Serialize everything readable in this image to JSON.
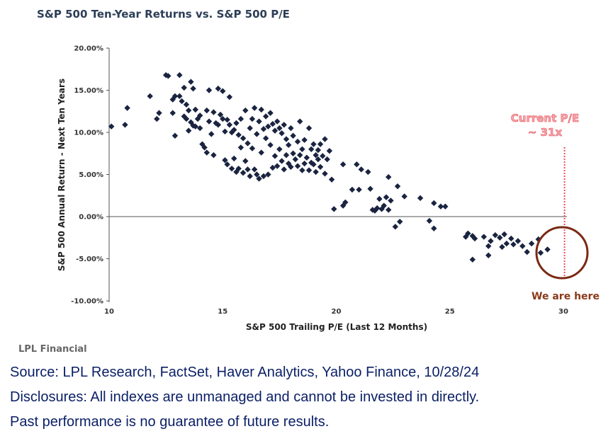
{
  "chart_data": {
    "type": "scatter",
    "title": "S&P 500 Ten-Year Returns vs. S&P 500 P/E",
    "xlabel": "S&P 500 Trailing P/E (Last 12 Months)",
    "ylabel": "S&P 500 Annual Return - Next Ten Years",
    "xlim": [
      10,
      30
    ],
    "ylim": [
      -10,
      20
    ],
    "x_ticks": [
      "10",
      "15",
      "20",
      "25",
      "30"
    ],
    "y_ticks": [
      "20.00%",
      "15.00%",
      "10.00%",
      "5.00%",
      "0.00%",
      "-5.00%",
      "-10.00%"
    ],
    "marker": "diamond",
    "marker_color": "#1a2440",
    "annotation_color": "#e8505b",
    "circle_color": "#7a2a14",
    "annotations": {
      "current_pe_line1": "Current P/E",
      "current_pe_line2": "~ 31x",
      "we_are_here": "We are here",
      "current_pe_x": 30.05
    },
    "points": [
      [
        10.1,
        10.7
      ],
      [
        10.7,
        10.9
      ],
      [
        10.8,
        12.9
      ],
      [
        11.8,
        14.3
      ],
      [
        12.1,
        11.6
      ],
      [
        12.2,
        12.3
      ],
      [
        12.5,
        16.8
      ],
      [
        12.6,
        16.7
      ],
      [
        12.8,
        13.9
      ],
      [
        12.8,
        12.3
      ],
      [
        12.9,
        14.3
      ],
      [
        12.9,
        9.6
      ],
      [
        13.1,
        16.8
      ],
      [
        13.1,
        14.3
      ],
      [
        13.2,
        13.7
      ],
      [
        13.3,
        15.3
      ],
      [
        13.3,
        11.9
      ],
      [
        13.4,
        13.3
      ],
      [
        13.4,
        11.6
      ],
      [
        13.5,
        12.6
      ],
      [
        13.5,
        10.2
      ],
      [
        13.6,
        16.0
      ],
      [
        13.6,
        11.2
      ],
      [
        13.7,
        15.2
      ],
      [
        13.7,
        10.8
      ],
      [
        13.8,
        12.7
      ],
      [
        13.8,
        10.7
      ],
      [
        13.9,
        11.6
      ],
      [
        14.0,
        10.5
      ],
      [
        14.0,
        12.0
      ],
      [
        14.1,
        8.6
      ],
      [
        14.2,
        8.2
      ],
      [
        14.3,
        12.6
      ],
      [
        14.3,
        7.6
      ],
      [
        14.4,
        15.0
      ],
      [
        14.4,
        11.3
      ],
      [
        14.5,
        9.8
      ],
      [
        14.6,
        12.4
      ],
      [
        14.6,
        7.3
      ],
      [
        14.7,
        11.1
      ],
      [
        14.8,
        15.2
      ],
      [
        14.8,
        10.9
      ],
      [
        14.9,
        12.1
      ],
      [
        15.0,
        14.9
      ],
      [
        15.0,
        11.6
      ],
      [
        15.1,
        10.1
      ],
      [
        15.1,
        6.7
      ],
      [
        15.2,
        11.5
      ],
      [
        15.2,
        6.2
      ],
      [
        15.3,
        14.2
      ],
      [
        15.3,
        10.9
      ],
      [
        15.4,
        10.0
      ],
      [
        15.4,
        5.7
      ],
      [
        15.5,
        10.3
      ],
      [
        15.5,
        6.9
      ],
      [
        15.6,
        11.1
      ],
      [
        15.6,
        5.3
      ],
      [
        15.7,
        9.7
      ],
      [
        15.7,
        5.7
      ],
      [
        15.8,
        11.6
      ],
      [
        15.8,
        8.2
      ],
      [
        15.9,
        9.3
      ],
      [
        15.9,
        5.2
      ],
      [
        16.0,
        12.6
      ],
      [
        16.0,
        6.6
      ],
      [
        16.1,
        8.7
      ],
      [
        16.1,
        5.6
      ],
      [
        16.2,
        10.5
      ],
      [
        16.2,
        4.8
      ],
      [
        16.3,
        11.6
      ],
      [
        16.3,
        8.1
      ],
      [
        16.4,
        12.9
      ],
      [
        16.4,
        5.6
      ],
      [
        16.5,
        9.8
      ],
      [
        16.5,
        5.0
      ],
      [
        16.6,
        11.3
      ],
      [
        16.6,
        4.5
      ],
      [
        16.7,
        12.7
      ],
      [
        16.7,
        7.6
      ],
      [
        16.8,
        10.4
      ],
      [
        16.8,
        4.8
      ],
      [
        16.9,
        11.9
      ],
      [
        16.9,
        9.3
      ],
      [
        17.0,
        10.7
      ],
      [
        17.0,
        5.0
      ],
      [
        17.1,
        12.3
      ],
      [
        17.1,
        8.5
      ],
      [
        17.2,
        11.0
      ],
      [
        17.2,
        5.8
      ],
      [
        17.3,
        10.2
      ],
      [
        17.3,
        7.2
      ],
      [
        17.4,
        11.3
      ],
      [
        17.4,
        6.0
      ],
      [
        17.5,
        10.5
      ],
      [
        17.5,
        8.0
      ],
      [
        17.6,
        9.9
      ],
      [
        17.6,
        6.6
      ],
      [
        17.7,
        10.9
      ],
      [
        17.7,
        5.6
      ],
      [
        17.8,
        9.2
      ],
      [
        17.8,
        7.3
      ],
      [
        17.9,
        8.5
      ],
      [
        17.9,
        6.3
      ],
      [
        18.0,
        10.5
      ],
      [
        18.0,
        5.9
      ],
      [
        18.1,
        7.5
      ],
      [
        18.1,
        9.6
      ],
      [
        18.2,
        6.8
      ],
      [
        18.3,
        8.9
      ],
      [
        18.3,
        6.0
      ],
      [
        18.4,
        11.3
      ],
      [
        18.4,
        7.3
      ],
      [
        18.5,
        8.0
      ],
      [
        18.5,
        5.5
      ],
      [
        18.6,
        9.1
      ],
      [
        18.6,
        6.3
      ],
      [
        18.7,
        7.0
      ],
      [
        18.8,
        10.5
      ],
      [
        18.8,
        5.5
      ],
      [
        18.9,
        8.0
      ],
      [
        18.9,
        6.4
      ],
      [
        19.0,
        8.6
      ],
      [
        19.0,
        6.2
      ],
      [
        19.1,
        7.3
      ],
      [
        19.1,
        5.3
      ],
      [
        19.2,
        7.9
      ],
      [
        19.2,
        6.8
      ],
      [
        19.3,
        8.6
      ],
      [
        19.3,
        5.9
      ],
      [
        19.4,
        7.2
      ],
      [
        19.5,
        9.2
      ],
      [
        19.5,
        5.1
      ],
      [
        19.6,
        6.8
      ],
      [
        19.7,
        7.8
      ],
      [
        19.8,
        4.4
      ],
      [
        19.9,
        0.9
      ],
      [
        20.3,
        6.2
      ],
      [
        20.3,
        1.3
      ],
      [
        20.4,
        1.7
      ],
      [
        20.7,
        3.2
      ],
      [
        20.9,
        6.2
      ],
      [
        21.0,
        3.2
      ],
      [
        21.1,
        5.6
      ],
      [
        21.4,
        5.3
      ],
      [
        21.5,
        3.3
      ],
      [
        21.6,
        0.8
      ],
      [
        21.7,
        0.7
      ],
      [
        21.8,
        1.0
      ],
      [
        21.9,
        2.1
      ],
      [
        22.0,
        0.9
      ],
      [
        22.1,
        1.3
      ],
      [
        22.2,
        2.3
      ],
      [
        22.3,
        0.8
      ],
      [
        22.3,
        4.7
      ],
      [
        22.4,
        1.9
      ],
      [
        22.6,
        -1.2
      ],
      [
        22.7,
        3.6
      ],
      [
        22.8,
        -0.6
      ],
      [
        23.0,
        2.4
      ],
      [
        23.7,
        2.2
      ],
      [
        24.1,
        -0.5
      ],
      [
        24.3,
        1.6
      ],
      [
        24.3,
        -1.4
      ],
      [
        24.6,
        1.2
      ],
      [
        24.8,
        1.2
      ],
      [
        25.7,
        -2.4
      ],
      [
        25.8,
        -2.0
      ],
      [
        26.0,
        -2.3
      ],
      [
        26.1,
        -2.6
      ],
      [
        26.0,
        -5.1
      ],
      [
        26.5,
        -2.4
      ],
      [
        26.7,
        -3.5
      ],
      [
        26.8,
        -2.9
      ],
      [
        27.0,
        -2.2
      ],
      [
        27.2,
        -2.5
      ],
      [
        27.3,
        -3.6
      ],
      [
        27.4,
        -2.1
      ],
      [
        27.5,
        -3.2
      ],
      [
        27.7,
        -2.6
      ],
      [
        27.8,
        -3.3
      ],
      [
        28.0,
        -2.9
      ],
      [
        28.2,
        -3.5
      ],
      [
        28.4,
        -4.2
      ],
      [
        28.6,
        -3.2
      ],
      [
        28.9,
        -2.7
      ],
      [
        29.0,
        -4.3
      ],
      [
        29.3,
        -3.9
      ],
      [
        26.7,
        -4.6
      ]
    ]
  },
  "branding": {
    "source_brand": "LPL Financial"
  },
  "footnotes": {
    "line1": "Source: LPL Research, FactSet, Haver Analytics, Yahoo Finance, 10/28/24",
    "line2": "Disclosures: All indexes are unmanaged and cannot be invested in directly.",
    "line3": "Past performance is no guarantee of future results."
  }
}
